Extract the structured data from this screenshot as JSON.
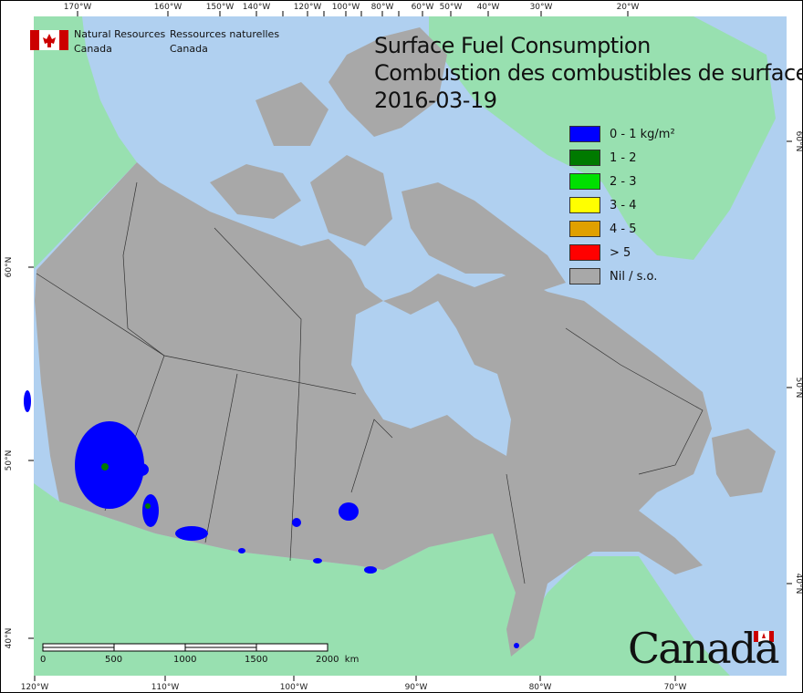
{
  "header": {
    "org_en": [
      "Natural Resources",
      "Canada"
    ],
    "org_fr": [
      "Ressources naturelles",
      "Canada"
    ]
  },
  "title": {
    "line1": "Surface Fuel Consumption",
    "line2": "Combustion des combustibles de surface",
    "date": "2016-03-19"
  },
  "legend": [
    {
      "label": "0 - 1 kg/m²",
      "color": "#0000ff"
    },
    {
      "label": "1 - 2",
      "color": "#007a00"
    },
    {
      "label": "2 - 3",
      "color": "#00e000"
    },
    {
      "label": "3 - 4",
      "color": "#ffff00"
    },
    {
      "label": "4 - 5",
      "color": "#e0a000"
    },
    {
      "label": "> 5",
      "color": "#ff0000"
    },
    {
      "label": "Nil / s.o.",
      "color": "#a8a8a8"
    }
  ],
  "top_ticks": [
    "170°W",
    "160°W",
    "150°W",
    "140°W",
    "120°W",
    "100°W",
    "80°W",
    "60°W",
    "50°W",
    "40°W",
    "30°W",
    "20°W"
  ],
  "bottom_ticks": [
    "120°W",
    "110°W",
    "100°W",
    "90°W",
    "80°W",
    "70°W"
  ],
  "left_ticks": [
    "60°N",
    "50°N",
    "40°N"
  ],
  "right_ticks": [
    "60°N",
    "50°N",
    "40°N"
  ],
  "scale": {
    "labels": [
      "0",
      "500",
      "1000",
      "1500",
      "2000  km"
    ]
  },
  "wordmark": "Canada",
  "colors": {
    "water": "#b0d0f0",
    "land_other": "#98e0b0",
    "canada": "#a8a8a8"
  }
}
